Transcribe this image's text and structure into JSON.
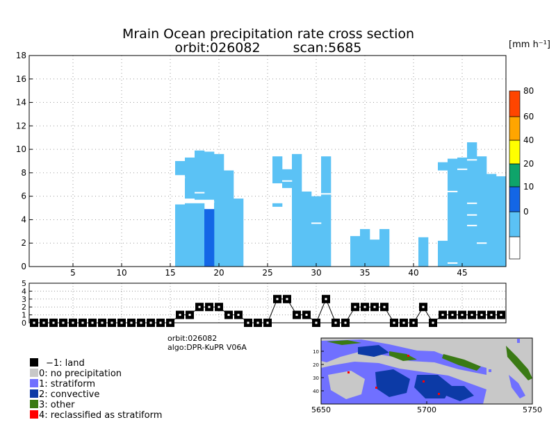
{
  "title_line1": "Mrain Ocean precipitation rate cross section",
  "title_orbit": "orbit:026082",
  "title_scan": "scan:5685",
  "unit": "[mm h⁻¹]",
  "info_orbit": "orbit:026082",
  "info_algo": "algo:DPR-KuPR V06A",
  "legend": [
    {
      "label": "−1: land",
      "color": "#000000"
    },
    {
      "label": "0: no precipitation",
      "color": "#c8c8c8"
    },
    {
      "label": "1: stratiform",
      "color": "#7070ff"
    },
    {
      "label": "2: convective",
      "color": "#0c3aa6"
    },
    {
      "label": "3: other",
      "color": "#3a7a14"
    },
    {
      "label": "4: reclassified as stratiform",
      "color": "#ff0000"
    }
  ],
  "chart_data": [
    {
      "type": "heatmap",
      "name": "cross-section",
      "title": "Mrain Ocean precipitation rate cross section",
      "xlim": [
        0.5,
        49.5
      ],
      "ylim": [
        0,
        18
      ],
      "xticks": [
        5,
        10,
        15,
        20,
        25,
        30,
        35,
        40,
        45
      ],
      "yticks": [
        0,
        2,
        4,
        6,
        8,
        10,
        12,
        14,
        16,
        18
      ],
      "color_light": "#5bc2f5",
      "color_dark": "#1366e6",
      "columns": [
        {
          "x": 16,
          "segs": [
            [
              0,
              5.3
            ],
            [
              7.8,
              9.0
            ]
          ]
        },
        {
          "x": 17,
          "segs": [
            [
              0,
              5.4
            ],
            [
              5.8,
              9.3
            ]
          ]
        },
        {
          "x": 18,
          "segs": [
            [
              0,
              5.4
            ],
            [
              5.7,
              9.9
            ]
          ]
        },
        {
          "x": 19,
          "segs": [
            [
              0,
              4.9
            ],
            [
              5.7,
              9.8
            ]
          ]
        },
        {
          "x": 20,
          "segs": [
            [
              0,
              9.6
            ]
          ]
        },
        {
          "x": 21,
          "segs": [
            [
              0,
              8.2
            ]
          ]
        },
        {
          "x": 22,
          "segs": [
            [
              0,
              5.8
            ]
          ]
        },
        {
          "x": 26,
          "segs": [
            [
              5.1,
              5.4
            ],
            [
              7.1,
              9.4
            ]
          ]
        },
        {
          "x": 27,
          "segs": [
            [
              6.7,
              8.3
            ]
          ]
        },
        {
          "x": 28,
          "segs": [
            [
              0,
              9.6
            ]
          ]
        },
        {
          "x": 29,
          "segs": [
            [
              0,
              6.4
            ]
          ]
        },
        {
          "x": 30,
          "segs": [
            [
              0,
              6.0
            ]
          ]
        },
        {
          "x": 31,
          "segs": [
            [
              0,
              9.4
            ]
          ]
        },
        {
          "x": 34,
          "segs": [
            [
              0,
              2.6
            ]
          ]
        },
        {
          "x": 35,
          "segs": [
            [
              0,
              3.2
            ]
          ]
        },
        {
          "x": 36,
          "segs": [
            [
              0,
              2.3
            ]
          ]
        },
        {
          "x": 37,
          "segs": [
            [
              0,
              3.2
            ]
          ]
        },
        {
          "x": 41,
          "segs": [
            [
              0,
              2.5
            ]
          ]
        },
        {
          "x": 43,
          "segs": [
            [
              0,
              2.2
            ],
            [
              8.2,
              8.9
            ]
          ]
        },
        {
          "x": 44,
          "segs": [
            [
              0,
              9.2
            ]
          ]
        },
        {
          "x": 45,
          "segs": [
            [
              0,
              9.3
            ]
          ]
        },
        {
          "x": 46,
          "segs": [
            [
              0,
              10.6
            ]
          ]
        },
        {
          "x": 47,
          "segs": [
            [
              0,
              9.4
            ]
          ]
        },
        {
          "x": 48,
          "segs": [
            [
              0,
              7.9
            ]
          ]
        },
        {
          "x": 49,
          "segs": [
            [
              0,
              7.7
            ]
          ]
        }
      ],
      "dark_cells": [
        {
          "x": 19,
          "from": 0,
          "to": 4.9
        }
      ],
      "gaps": [
        {
          "x": 16,
          "at": 7.6
        },
        {
          "x": 18,
          "at": 6.3
        },
        {
          "x": 19,
          "at": 5.5
        },
        {
          "x": 27,
          "at": 7.3
        },
        {
          "x": 30,
          "at": 3.7
        },
        {
          "x": 31,
          "at": 6.2
        },
        {
          "x": 44,
          "at": 6.4
        },
        {
          "x": 44,
          "at": 0.3
        },
        {
          "x": 45,
          "at": 8.3
        },
        {
          "x": 46,
          "at": 9.1
        },
        {
          "x": 46,
          "at": 5.4
        },
        {
          "x": 46,
          "at": 4.4
        },
        {
          "x": 46,
          "at": 3.5
        },
        {
          "x": 47,
          "at": 2.0
        }
      ]
    },
    {
      "type": "bar",
      "name": "colorbar",
      "ticks": [
        0,
        10,
        20,
        40,
        60,
        80
      ],
      "bins": [
        {
          "label": "",
          "color": "#ffffff"
        },
        {
          "label": "0",
          "color": "#5bc2f5"
        },
        {
          "label": "10",
          "color": "#1366e6"
        },
        {
          "label": "20",
          "color": "#0ea46a"
        },
        {
          "label": "40",
          "color": "#ffff00"
        },
        {
          "label": "60",
          "color": "#ffa500"
        },
        {
          "label": "80",
          "color": "#ff4500"
        }
      ]
    },
    {
      "type": "line",
      "name": "rain-type",
      "xlim": [
        0.5,
        49.5
      ],
      "ylim": [
        0,
        5
      ],
      "yticks": [
        0,
        1,
        2,
        3,
        4,
        5
      ],
      "x": [
        1,
        2,
        3,
        4,
        5,
        6,
        7,
        8,
        9,
        10,
        11,
        12,
        13,
        14,
        15,
        16,
        17,
        18,
        19,
        20,
        21,
        22,
        23,
        24,
        25,
        26,
        27,
        28,
        29,
        30,
        31,
        32,
        33,
        34,
        35,
        36,
        37,
        38,
        39,
        40,
        41,
        42,
        43,
        44,
        45,
        46,
        47,
        48,
        49
      ],
      "values": [
        0,
        0,
        0,
        0,
        0,
        0,
        0,
        0,
        0,
        0,
        0,
        0,
        0,
        0,
        0,
        1,
        1,
        2,
        2,
        2,
        1,
        1,
        0,
        0,
        0,
        3,
        3,
        1,
        1,
        0,
        3,
        0,
        0,
        2,
        2,
        2,
        2,
        0,
        0,
        0,
        2,
        0,
        1,
        1,
        1,
        1,
        1,
        1,
        1
      ]
    },
    {
      "type": "heatmap",
      "name": "rain-type-map",
      "xticks": [
        5650,
        5700,
        5750
      ],
      "yticks": [
        10,
        20,
        30,
        40
      ]
    }
  ]
}
